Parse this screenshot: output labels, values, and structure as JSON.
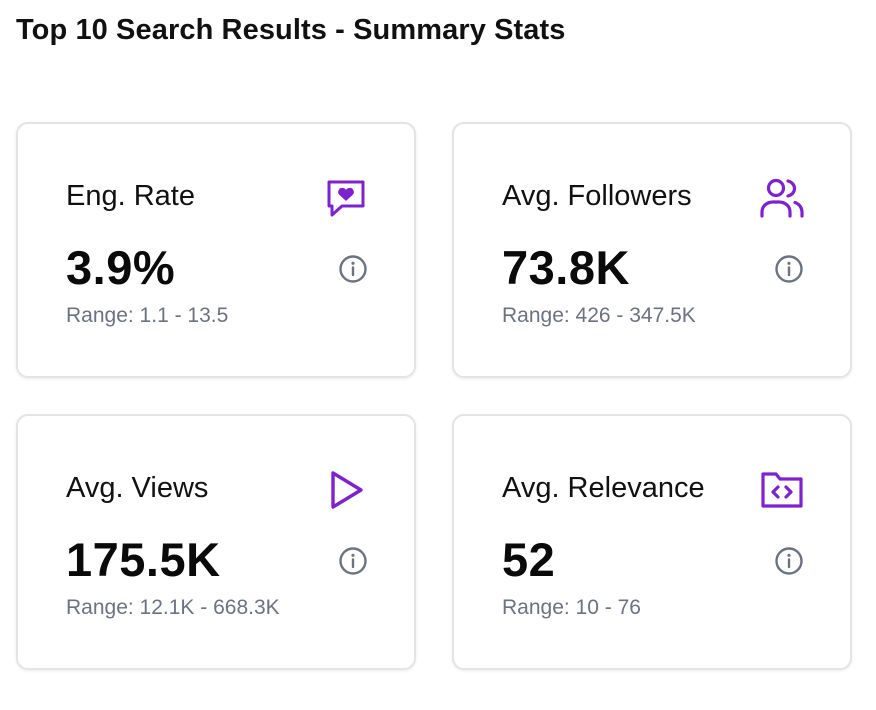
{
  "header": {
    "title": "Top 10 Search Results - Summary Stats"
  },
  "colors": {
    "accent": "#7e22ce",
    "range_text": "#6b7280",
    "info_icon": "#6b7280",
    "card_border": "#e4e4e7"
  },
  "cards": [
    {
      "title": "Eng. Rate",
      "value": "3.9%",
      "range": "Range: 1.1 - 13.5",
      "icon": "message-heart-icon"
    },
    {
      "title": "Avg. Followers",
      "value": "73.8K",
      "range": "Range: 426 - 347.5K",
      "icon": "users-icon"
    },
    {
      "title": "Avg. Views",
      "value": "175.5K",
      "range": "Range: 12.1K - 668.3K",
      "icon": "play-icon"
    },
    {
      "title": "Avg. Relevance",
      "value": "52",
      "range": "Range: 10 - 76",
      "icon": "folder-code-icon"
    }
  ]
}
